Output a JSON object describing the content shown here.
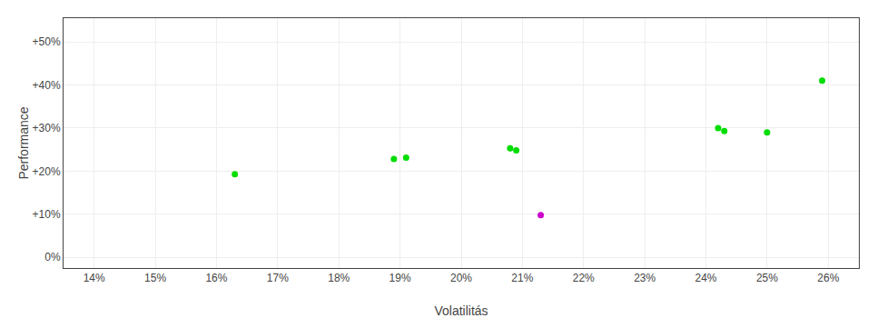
{
  "chart_data": {
    "type": "scatter",
    "x_label": "Volatilitás",
    "y_label": "Performance",
    "series": [
      {
        "color": "#00dd00",
        "x": [
          0.163,
          0.189,
          0.191,
          0.208,
          0.209,
          0.242,
          0.243,
          0.25,
          0.259
        ],
        "values": [
          0.193,
          0.228,
          0.231,
          0.253,
          0.248,
          0.3,
          0.293,
          0.29,
          0.41
        ]
      },
      {
        "color": "#cc00cc",
        "x": [
          0.213
        ],
        "values": [
          0.098
        ]
      }
    ],
    "xlim": [
      0.135,
      0.265
    ],
    "xticks": [
      {
        "value": 0.14,
        "label": "14%"
      },
      {
        "value": 0.15,
        "label": "15%"
      },
      {
        "value": 0.16,
        "label": "16%"
      },
      {
        "value": 0.17,
        "label": "17%"
      },
      {
        "value": 0.18,
        "label": "18%"
      },
      {
        "value": 0.19,
        "label": "19%"
      },
      {
        "value": 0.2,
        "label": "20%"
      },
      {
        "value": 0.21,
        "label": "21%"
      },
      {
        "value": 0.22,
        "label": "22%"
      },
      {
        "value": 0.23,
        "label": "23%"
      },
      {
        "value": 0.24,
        "label": "24%"
      },
      {
        "value": 0.25,
        "label": "25%"
      },
      {
        "value": 0.26,
        "label": "26%"
      }
    ],
    "ylim": [
      -0.025,
      0.555
    ],
    "yticks": [
      {
        "value": 0.0,
        "label": "0%"
      },
      {
        "value": 0.1,
        "label": "+10%"
      },
      {
        "value": 0.2,
        "label": "+20%"
      },
      {
        "value": 0.3,
        "label": "+30%"
      },
      {
        "value": 0.4,
        "label": "+40%"
      },
      {
        "value": 0.5,
        "label": "+50%"
      }
    ],
    "grid": true
  }
}
